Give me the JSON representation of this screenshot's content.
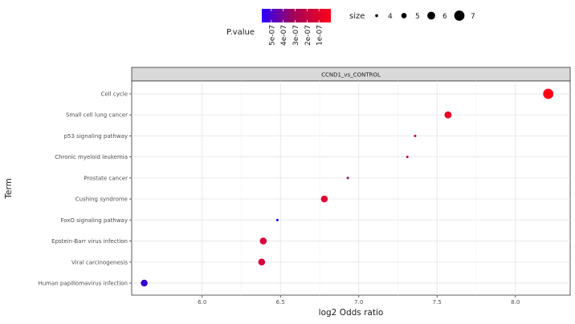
{
  "chart_data": {
    "type": "scatter",
    "facet_title": "CCND1_vs_CONTROL",
    "xlabel": "log2 Odds ratio",
    "ylabel": "Term",
    "xlim": [
      5.55,
      8.35
    ],
    "x_ticks": [
      "6.0",
      "6.5",
      "7.0",
      "7.5",
      "8.0"
    ],
    "x_tick_values": [
      6.0,
      6.5,
      7.0,
      7.5,
      8.0
    ],
    "grid": true,
    "legend_position": "top",
    "color_legend": {
      "title": "P.value",
      "labels": [
        "5e-07",
        "4e-07",
        "3e-07",
        "2e-07",
        "1e-07"
      ],
      "values": [
        5e-07,
        4e-07,
        3e-07,
        2e-07,
        1e-07
      ],
      "low_color": "#ff0000",
      "high_color": "#0000ff",
      "range": [
        1e-08,
        5.8e-07
      ]
    },
    "size_legend": {
      "title": "size",
      "labels": [
        "4",
        "5",
        "6",
        "7"
      ],
      "values": [
        4,
        5,
        6,
        7
      ]
    },
    "terms": [
      "Cell cycle",
      "Small cell lung cancer",
      "p53 signaling pathway",
      "Chronic myeloid leukemia",
      "Prostate cancer",
      "Cushing syndrome",
      "FoxO signaling pathway",
      "Epstein-Barr virus infection",
      "Viral carcinogenesis",
      "Human papillomavirus infection"
    ],
    "points": [
      {
        "term": "Cell cycle",
        "x": 8.21,
        "size": 7,
        "pvalue": 1e-08
      },
      {
        "term": "Small cell lung cancer",
        "x": 7.57,
        "size": 5.7,
        "pvalue": 5e-08
      },
      {
        "term": "p53 signaling pathway",
        "x": 7.36,
        "size": 3.8,
        "pvalue": 1.5e-07
      },
      {
        "term": "Chronic myeloid leukemia",
        "x": 7.31,
        "size": 3.8,
        "pvalue": 1.5e-07
      },
      {
        "term": "Prostate cancer",
        "x": 6.93,
        "size": 3.8,
        "pvalue": 2.2e-07
      },
      {
        "term": "Cushing syndrome",
        "x": 6.78,
        "size": 5.6,
        "pvalue": 8e-08
      },
      {
        "term": "FoxO signaling pathway",
        "x": 6.48,
        "size": 3.8,
        "pvalue": 5.8e-07
      },
      {
        "term": "Epstein-Barr virus infection",
        "x": 6.39,
        "size": 5.6,
        "pvalue": 9e-08
      },
      {
        "term": "Viral carcinogenesis",
        "x": 6.38,
        "size": 5.6,
        "pvalue": 9e-08
      },
      {
        "term": "Human papillomavirus infection",
        "x": 5.63,
        "size": 5.6,
        "pvalue": 4.6e-07
      }
    ]
  }
}
